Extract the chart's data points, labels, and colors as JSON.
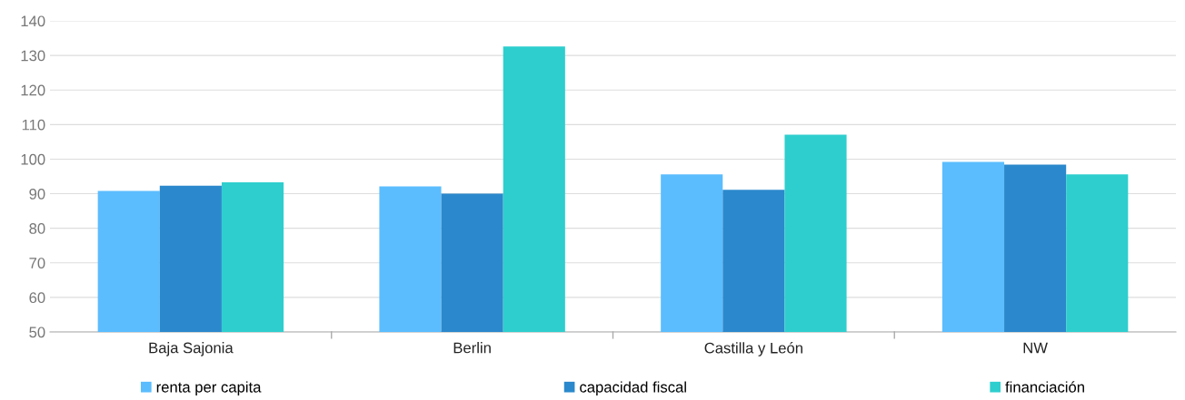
{
  "chart_data": {
    "type": "bar",
    "categories": [
      "Baja Sajonia",
      "Berlin",
      "Castilla y León",
      "NW"
    ],
    "series": [
      {
        "name": "renta per capita",
        "color": "#5bbdfe",
        "values": [
          90.8,
          92.1,
          95.6,
          99.2
        ]
      },
      {
        "name": "capacidad fiscal",
        "color": "#2b88cc",
        "values": [
          92.3,
          90.0,
          91.1,
          98.4
        ]
      },
      {
        "name": "financiación",
        "color": "#2ecece",
        "values": [
          93.3,
          132.6,
          107.1,
          95.6
        ]
      }
    ],
    "ylim": [
      50,
      140
    ],
    "yticks": [
      50,
      60,
      70,
      80,
      90,
      100,
      110,
      120,
      130,
      140
    ],
    "grid": "y",
    "legend": "bottom"
  }
}
